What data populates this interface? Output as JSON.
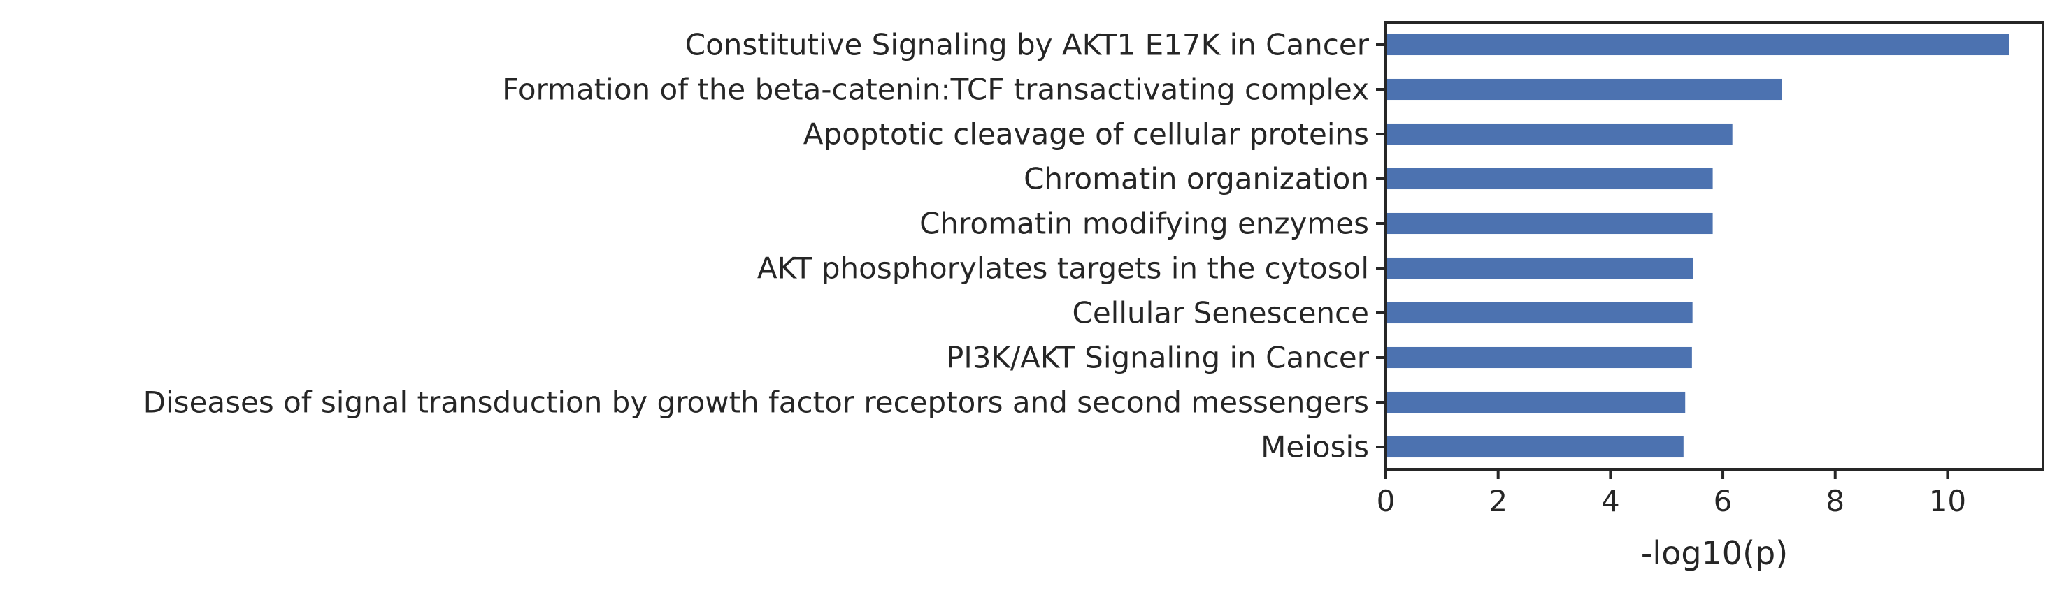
{
  "chart_data": {
    "type": "bar",
    "orientation": "horizontal",
    "categories": [
      "Constitutive Signaling by AKT1 E17K in Cancer",
      "Formation of the beta-catenin:TCF transactivating complex",
      "Apoptotic cleavage of cellular proteins",
      "Chromatin organization",
      "Chromatin modifying enzymes",
      "AKT phosphorylates targets in the cytosol",
      "Cellular Senescence",
      "PI3K/AKT Signaling in Cancer",
      "Diseases of signal transduction by growth factor receptors and second messengers",
      "Meiosis"
    ],
    "values": [
      11.1,
      7.05,
      6.17,
      5.82,
      5.82,
      5.47,
      5.46,
      5.45,
      5.33,
      5.3
    ],
    "title": "",
    "xlabel": "-log10(p)",
    "ylabel": "",
    "xlim": [
      0,
      11.7
    ],
    "xticks": [
      0,
      2,
      4,
      6,
      8,
      10
    ],
    "grid": false,
    "legend": "none",
    "bar_color": "#4c72b0",
    "axis_color": "#262626"
  }
}
